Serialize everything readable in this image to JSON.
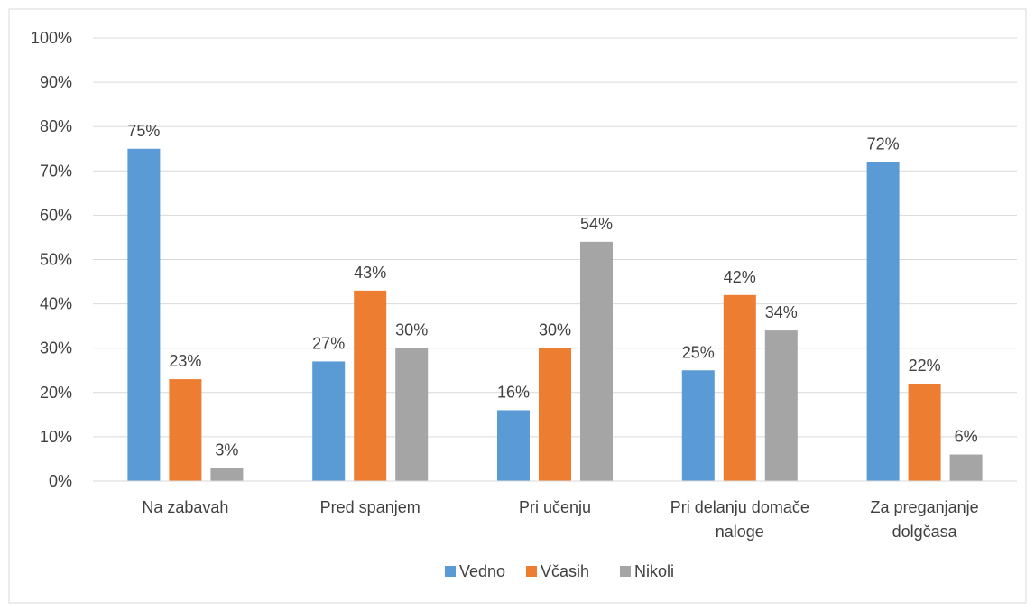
{
  "chart_data": {
    "type": "bar",
    "categories": [
      [
        "Na zabavah"
      ],
      [
        "Pred spanjem"
      ],
      [
        "Pri učenju"
      ],
      [
        "Pri delanju domače",
        "naloge"
      ],
      [
        "Za preganjanje",
        "dolgčasa"
      ]
    ],
    "series": [
      {
        "name": "Vedno",
        "color": "#5B9BD5",
        "values": [
          75,
          27,
          16,
          25,
          72
        ],
        "labels": [
          "75%",
          "27%",
          "16%",
          "25%",
          "72%"
        ]
      },
      {
        "name": "Včasih",
        "color": "#ED7D31",
        "values": [
          23,
          43,
          30,
          42,
          22
        ],
        "labels": [
          "23%",
          "43%",
          "30%",
          "42%",
          "22%"
        ]
      },
      {
        "name": "Nikoli",
        "color": "#A5A5A5",
        "values": [
          3,
          30,
          54,
          34,
          6
        ],
        "labels": [
          "3%",
          "30%",
          "54%",
          "34%",
          "6%"
        ]
      }
    ],
    "y_ticks": [
      "0%",
      "10%",
      "20%",
      "30%",
      "40%",
      "50%",
      "60%",
      "70%",
      "80%",
      "90%",
      "100%"
    ],
    "ylim": [
      0,
      100
    ],
    "grid": true,
    "legend_position": "bottom",
    "title": "",
    "xlabel": "",
    "ylabel": ""
  }
}
